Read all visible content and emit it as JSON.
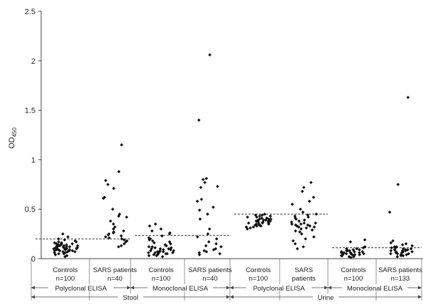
{
  "chart_data": {
    "type": "scatter",
    "title": "",
    "ylabel_main": "OD",
    "ylabel_sub": "450",
    "ylim": [
      0,
      2.5
    ],
    "yticks": [
      "0",
      "0.5",
      "1",
      "1.5",
      "2",
      "2.5"
    ],
    "ytick_values": [
      0,
      0.5,
      1,
      1.5,
      2,
      2.5
    ],
    "grid": false,
    "groups": [
      {
        "label_line1": "Controls",
        "label_line2": "n=100"
      },
      {
        "label_line1": "SARS patients",
        "label_line2": "n=40"
      },
      {
        "label_line1": "Controls",
        "label_line2": "n=100"
      },
      {
        "label_line1": "SARS patients",
        "label_line2": "n=40"
      },
      {
        "label_line1": "Controls",
        "label_line2": "n=100"
      },
      {
        "label_line1": "SARS",
        "label_line2": "patients"
      },
      {
        "label_line1": "Controls",
        "label_line2": "n=100"
      },
      {
        "label_line1": "SARS patients",
        "label_line2": "n=133"
      }
    ],
    "methods": [
      {
        "label": "Polyclonal ELISA",
        "groups": [
          0,
          1
        ]
      },
      {
        "label": "Monoclonal ELISA",
        "groups": [
          2,
          3
        ]
      },
      {
        "label": "Polyclonal ELISA",
        "groups": [
          4,
          5
        ]
      },
      {
        "label": "Monoclonal ELISA",
        "groups": [
          6,
          7
        ]
      }
    ],
    "specimens": [
      {
        "label": "Stool",
        "methods": [
          0,
          1
        ]
      },
      {
        "label": "Urine",
        "methods": [
          2,
          3
        ]
      }
    ],
    "cutoffs": [
      {
        "method": 0,
        "value": 0.2
      },
      {
        "method": 1,
        "value": 0.235
      },
      {
        "method": 2,
        "value": 0.45
      },
      {
        "method": 3,
        "value": 0.11
      }
    ],
    "points": [
      [
        0.02,
        0.03,
        0.04,
        0.05,
        0.05,
        0.06,
        0.06,
        0.07,
        0.07,
        0.07,
        0.08,
        0.08,
        0.08,
        0.08,
        0.09,
        0.09,
        0.09,
        0.09,
        0.1,
        0.1,
        0.1,
        0.1,
        0.1,
        0.11,
        0.11,
        0.11,
        0.11,
        0.12,
        0.12,
        0.12,
        0.12,
        0.13,
        0.13,
        0.13,
        0.13,
        0.14,
        0.14,
        0.14,
        0.15,
        0.15,
        0.15,
        0.16,
        0.16,
        0.17,
        0.17,
        0.18,
        0.19,
        0.2,
        0.22,
        0.25
      ],
      [
        1.15,
        0.88,
        0.79,
        0.75,
        0.71,
        0.62,
        0.61,
        0.5,
        0.45,
        0.43,
        0.42,
        0.38,
        0.35,
        0.32,
        0.3,
        0.28,
        0.27,
        0.26,
        0.25,
        0.24,
        0.23,
        0.22,
        0.21,
        0.2,
        0.19,
        0.18,
        0.17,
        0.15,
        0.13,
        0.12
      ],
      [
        0.02,
        0.03,
        0.03,
        0.04,
        0.04,
        0.05,
        0.05,
        0.05,
        0.06,
        0.06,
        0.06,
        0.07,
        0.07,
        0.07,
        0.08,
        0.08,
        0.08,
        0.09,
        0.09,
        0.1,
        0.1,
        0.1,
        0.11,
        0.11,
        0.12,
        0.12,
        0.13,
        0.13,
        0.14,
        0.15,
        0.16,
        0.17,
        0.18,
        0.19,
        0.2,
        0.21,
        0.23,
        0.25,
        0.26,
        0.28,
        0.3,
        0.33,
        0.35
      ],
      [
        2.06,
        1.4,
        0.81,
        0.8,
        0.77,
        0.73,
        0.72,
        0.6,
        0.58,
        0.52,
        0.49,
        0.45,
        0.4,
        0.3,
        0.25,
        0.22,
        0.2,
        0.17,
        0.15,
        0.13,
        0.12,
        0.1,
        0.09,
        0.08,
        0.07,
        0.06,
        0.05,
        0.04
      ],
      [
        0.3,
        0.31,
        0.32,
        0.32,
        0.33,
        0.33,
        0.34,
        0.34,
        0.35,
        0.35,
        0.35,
        0.36,
        0.36,
        0.36,
        0.37,
        0.37,
        0.37,
        0.38,
        0.38,
        0.38,
        0.38,
        0.39,
        0.39,
        0.39,
        0.4,
        0.4,
        0.4,
        0.41,
        0.41,
        0.42,
        0.42,
        0.43,
        0.43,
        0.44,
        0.44,
        0.45
      ],
      [
        0.77,
        0.72,
        0.68,
        0.62,
        0.58,
        0.55,
        0.5,
        0.47,
        0.45,
        0.44,
        0.43,
        0.42,
        0.41,
        0.4,
        0.39,
        0.38,
        0.37,
        0.36,
        0.36,
        0.35,
        0.35,
        0.34,
        0.34,
        0.33,
        0.33,
        0.32,
        0.32,
        0.31,
        0.3,
        0.29,
        0.28,
        0.27,
        0.25,
        0.22,
        0.2,
        0.18,
        0.15,
        0.12,
        0.1
      ],
      [
        0.01,
        0.02,
        0.02,
        0.03,
        0.03,
        0.04,
        0.04,
        0.04,
        0.05,
        0.05,
        0.05,
        0.05,
        0.06,
        0.06,
        0.06,
        0.06,
        0.07,
        0.07,
        0.07,
        0.08,
        0.08,
        0.08,
        0.09,
        0.09,
        0.1,
        0.1,
        0.11,
        0.12,
        0.17,
        0.19
      ],
      [
        1.63,
        0.75,
        0.47,
        0.18,
        0.16,
        0.15,
        0.14,
        0.13,
        0.12,
        0.12,
        0.11,
        0.11,
        0.1,
        0.1,
        0.09,
        0.09,
        0.09,
        0.08,
        0.08,
        0.08,
        0.07,
        0.07,
        0.07,
        0.06,
        0.06,
        0.06,
        0.05,
        0.05,
        0.05,
        0.04,
        0.04,
        0.03,
        0.03,
        0.02
      ]
    ]
  }
}
